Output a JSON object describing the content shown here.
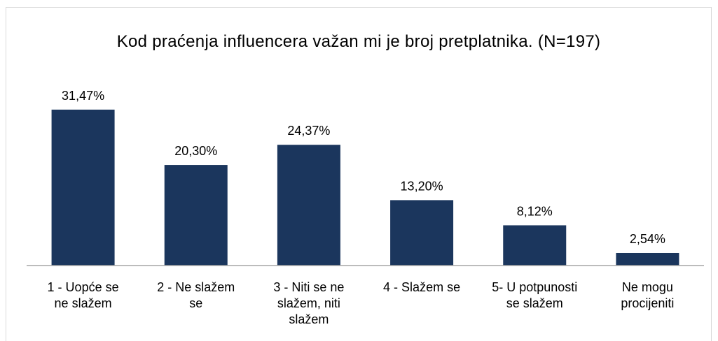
{
  "chart_data": {
    "type": "bar",
    "title": "Kod praćenja influencera važan mi je broj pretplatnika. (N=197)",
    "categories": [
      "1 - Uopće se ne slažem",
      "2 - Ne slažem se",
      "3 - Niti se ne slažem, niti slažem",
      "4 - Slažem se",
      "5- U potpunosti se slažem",
      "Ne mogu procijeniti"
    ],
    "values": [
      31.47,
      20.3,
      24.37,
      13.2,
      8.12,
      2.54
    ],
    "value_labels": [
      "31,47%",
      "20,30%",
      "24,37%",
      "13,20%",
      "8,12%",
      "2,54%"
    ],
    "color": "#1b365d"
  }
}
